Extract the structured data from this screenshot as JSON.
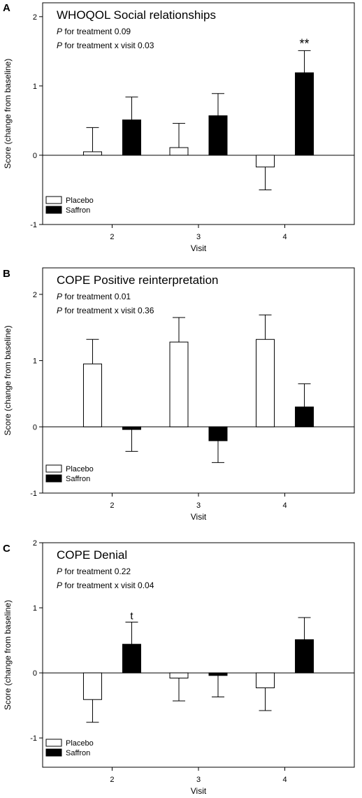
{
  "chart_data": [
    {
      "panel_label": "A",
      "type": "bar",
      "title": "WHOQOL Social relationships",
      "stat_lines": [
        {
          "italic": "P",
          "rest": " for treatment 0.09"
        },
        {
          "italic": "P",
          "rest": " for treatment x visit 0.03"
        }
      ],
      "xlabel": "Visit",
      "ylabel": "Score (change from baseline)",
      "categories": [
        "2",
        "3",
        "4"
      ],
      "ylim": [
        -1,
        2.2
      ],
      "yticks": [
        "-1",
        "0",
        "1",
        "2"
      ],
      "legend_position": "bottom-left",
      "series": [
        {
          "name": "Placebo",
          "fill": "#ffffff",
          "values": [
            0.05,
            0.11,
            -0.17
          ],
          "errors": [
            0.35,
            0.35,
            0.33
          ]
        },
        {
          "name": "Saffron",
          "fill": "#000000",
          "values": [
            0.51,
            0.57,
            1.19
          ],
          "errors": [
            0.33,
            0.32,
            0.32
          ]
        }
      ],
      "annotations": [
        {
          "text": "**",
          "category_index": 2,
          "series_index": 1
        }
      ]
    },
    {
      "panel_label": "B",
      "type": "bar",
      "title": "COPE Positive reinterpretation",
      "stat_lines": [
        {
          "italic": "P",
          "rest": " for treatment 0.01"
        },
        {
          "italic": "P",
          "rest": " for treatment x visit 0.36"
        }
      ],
      "xlabel": "Visit",
      "ylabel": "Score (change from baseline)",
      "categories": [
        "2",
        "3",
        "4"
      ],
      "ylim": [
        -1,
        2.4
      ],
      "yticks": [
        "-1",
        "0",
        "1",
        "2"
      ],
      "legend_position": "bottom-left",
      "series": [
        {
          "name": "Placebo",
          "fill": "#ffffff",
          "values": [
            0.95,
            1.28,
            1.32
          ],
          "errors": [
            0.37,
            0.37,
            0.37
          ]
        },
        {
          "name": "Saffron",
          "fill": "#000000",
          "values": [
            -0.04,
            -0.21,
            0.3
          ],
          "errors": [
            0.33,
            0.33,
            0.35
          ]
        }
      ],
      "annotations": []
    },
    {
      "panel_label": "C",
      "type": "bar",
      "title": "COPE Denial",
      "stat_lines": [
        {
          "italic": "P",
          "rest": " for treatment 0.22"
        },
        {
          "italic": "P",
          "rest": " for treatment x visit 0.04"
        }
      ],
      "xlabel": "Visit",
      "ylabel": "Score (change from baseline)",
      "categories": [
        "2",
        "3",
        "4"
      ],
      "ylim": [
        -1.45,
        2
      ],
      "yticks": [
        "-1",
        "0",
        "1",
        "2"
      ],
      "legend_position": "bottom-left",
      "series": [
        {
          "name": "Placebo",
          "fill": "#ffffff",
          "values": [
            -0.41,
            -0.08,
            -0.23
          ],
          "errors": [
            0.35,
            0.35,
            0.35
          ]
        },
        {
          "name": "Saffron",
          "fill": "#000000",
          "values": [
            0.44,
            -0.04,
            0.51
          ],
          "errors": [
            0.34,
            0.33,
            0.34
          ]
        }
      ],
      "annotations": [
        {
          "text": "t",
          "category_index": 0,
          "series_index": 1
        }
      ]
    }
  ]
}
